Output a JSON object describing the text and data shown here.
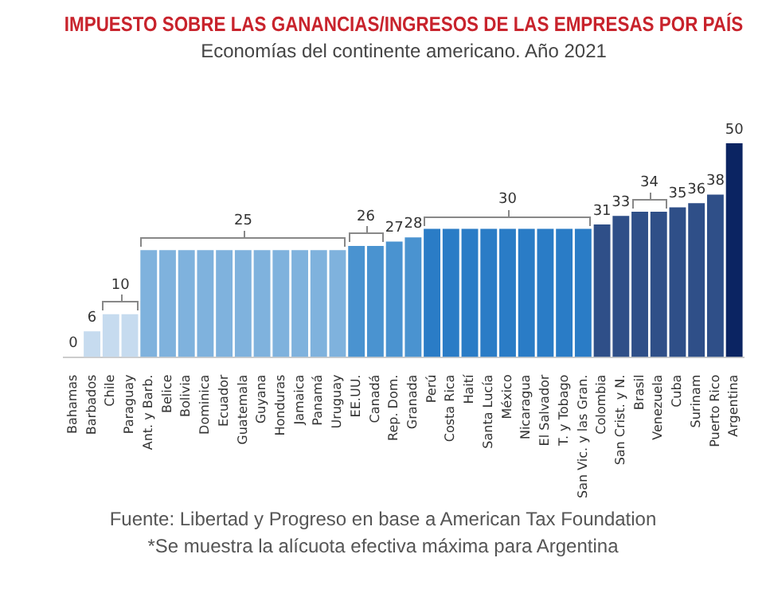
{
  "chart_data": {
    "type": "bar",
    "title": "IMPUESTO SOBRE LAS GANANCIAS/INGRESOS DE LAS EMPRESAS POR PAÍS",
    "subtitle": "Economías del continente americano. Año 2021",
    "categories": [
      "Bahamas",
      "Barbados",
      "Chile",
      "Paraguay",
      "Ant. y Barb.",
      "Belice",
      "Bolivia",
      "Dominica",
      "Ecuador",
      "Guatemala",
      "Guyana",
      "Honduras",
      "Jamaica",
      "Panamá",
      "Uruguay",
      "EE.UU.",
      "Canadá",
      "Rep. Dom.",
      "Granada",
      "Perú",
      "Costa Rica",
      "Haití",
      "Santa Lucía",
      "México",
      "Nicaragua",
      "El Salvador",
      "T. y Tobago",
      "San Vic. y las Gran.",
      "Colombia",
      "San Crist. y N.",
      "Brasil",
      "Venezuela",
      "Cuba",
      "Surinam",
      "Puerto Rico",
      "Argentina"
    ],
    "values": [
      0,
      6,
      10,
      10,
      25,
      25,
      25,
      25,
      25,
      25,
      25,
      25,
      25,
      25,
      25,
      26,
      26,
      27,
      28,
      30,
      30,
      30,
      30,
      30,
      30,
      30,
      30,
      30,
      31,
      33,
      34,
      34,
      35,
      36,
      38,
      50
    ],
    "colors": [
      "#c6dbef",
      "#c6dbef",
      "#c6dbef",
      "#c6dbef",
      "#7fb2dd",
      "#7fb2dd",
      "#7fb2dd",
      "#7fb2dd",
      "#7fb2dd",
      "#7fb2dd",
      "#7fb2dd",
      "#7fb2dd",
      "#7fb2dd",
      "#7fb2dd",
      "#7fb2dd",
      "#4a93d0",
      "#4a93d0",
      "#4a93d0",
      "#4a93d0",
      "#2a7cc6",
      "#2a7cc6",
      "#2a7cc6",
      "#2a7cc6",
      "#2a7cc6",
      "#2a7cc6",
      "#2a7cc6",
      "#2a7cc6",
      "#2a7cc6",
      "#2f4f88",
      "#2f4f88",
      "#2f4f88",
      "#2f4f88",
      "#2f4f88",
      "#2f4f88",
      "#2f4f88",
      "#0b2462"
    ],
    "value_labels": [
      "0",
      "6",
      "10",
      null,
      null,
      null,
      null,
      null,
      null,
      "25",
      null,
      null,
      null,
      null,
      null,
      "26",
      null,
      "27",
      "28",
      null,
      null,
      null,
      null,
      "30",
      null,
      null,
      null,
      null,
      "31",
      "33",
      "34",
      null,
      "35",
      "36",
      "38",
      "50"
    ],
    "annotations": [
      "Fuente: Libertad y Progreso en base a American Tax Foundation",
      "*Se muestra la alícuota efectiva máxima para Argentina"
    ]
  }
}
